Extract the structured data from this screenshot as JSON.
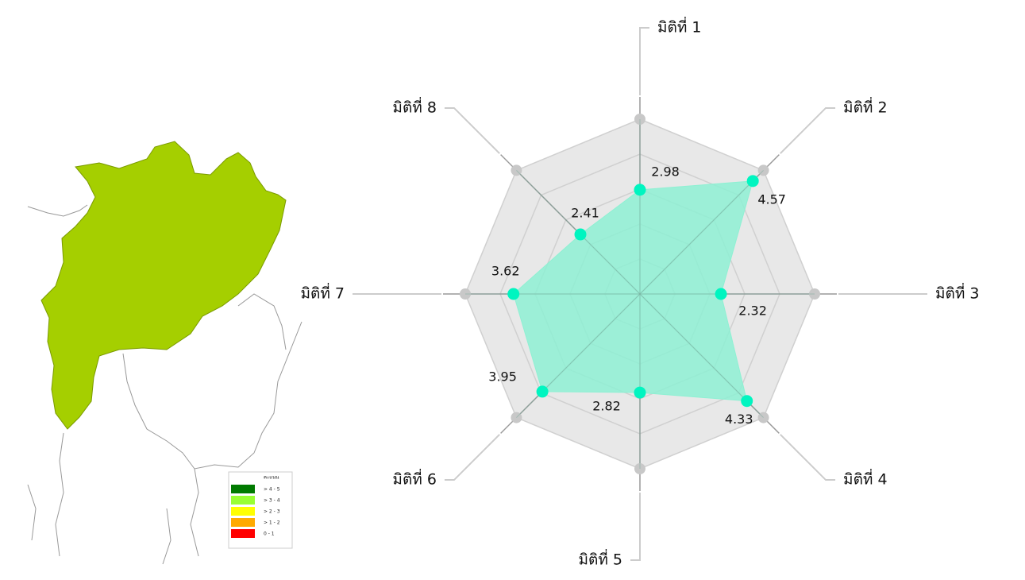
{
  "chart_data": {
    "type": "radar",
    "categories": [
      "มิติที่ 1",
      "มิติที่ 2",
      "มิติที่ 3",
      "มิติที่ 4",
      "มิติที่ 5",
      "มิติที่ 6",
      "มิติที่ 7",
      "มิติที่ 8"
    ],
    "values": [
      2.98,
      4.57,
      2.32,
      4.33,
      2.82,
      3.95,
      3.62,
      2.41
    ],
    "color": "#00f5c0",
    "fill": "#8ef0d3",
    "rlim": [
      0,
      5
    ],
    "rticks": [
      1,
      2,
      3,
      4,
      5
    ],
    "grid": true
  },
  "map": {
    "fill": "#a5cf00",
    "legend": {
      "title": "คะแนน",
      "items": [
        {
          "label": "> 4 - 5",
          "color": "#007a00"
        },
        {
          "label": "> 3 - 4",
          "color": "#99ff33"
        },
        {
          "label": "> 2 - 3",
          "color": "#ffff00"
        },
        {
          "label": "> 1 - 2",
          "color": "#ffaa00"
        },
        {
          "label": "0 - 1",
          "color": "#ff0000"
        }
      ]
    }
  }
}
